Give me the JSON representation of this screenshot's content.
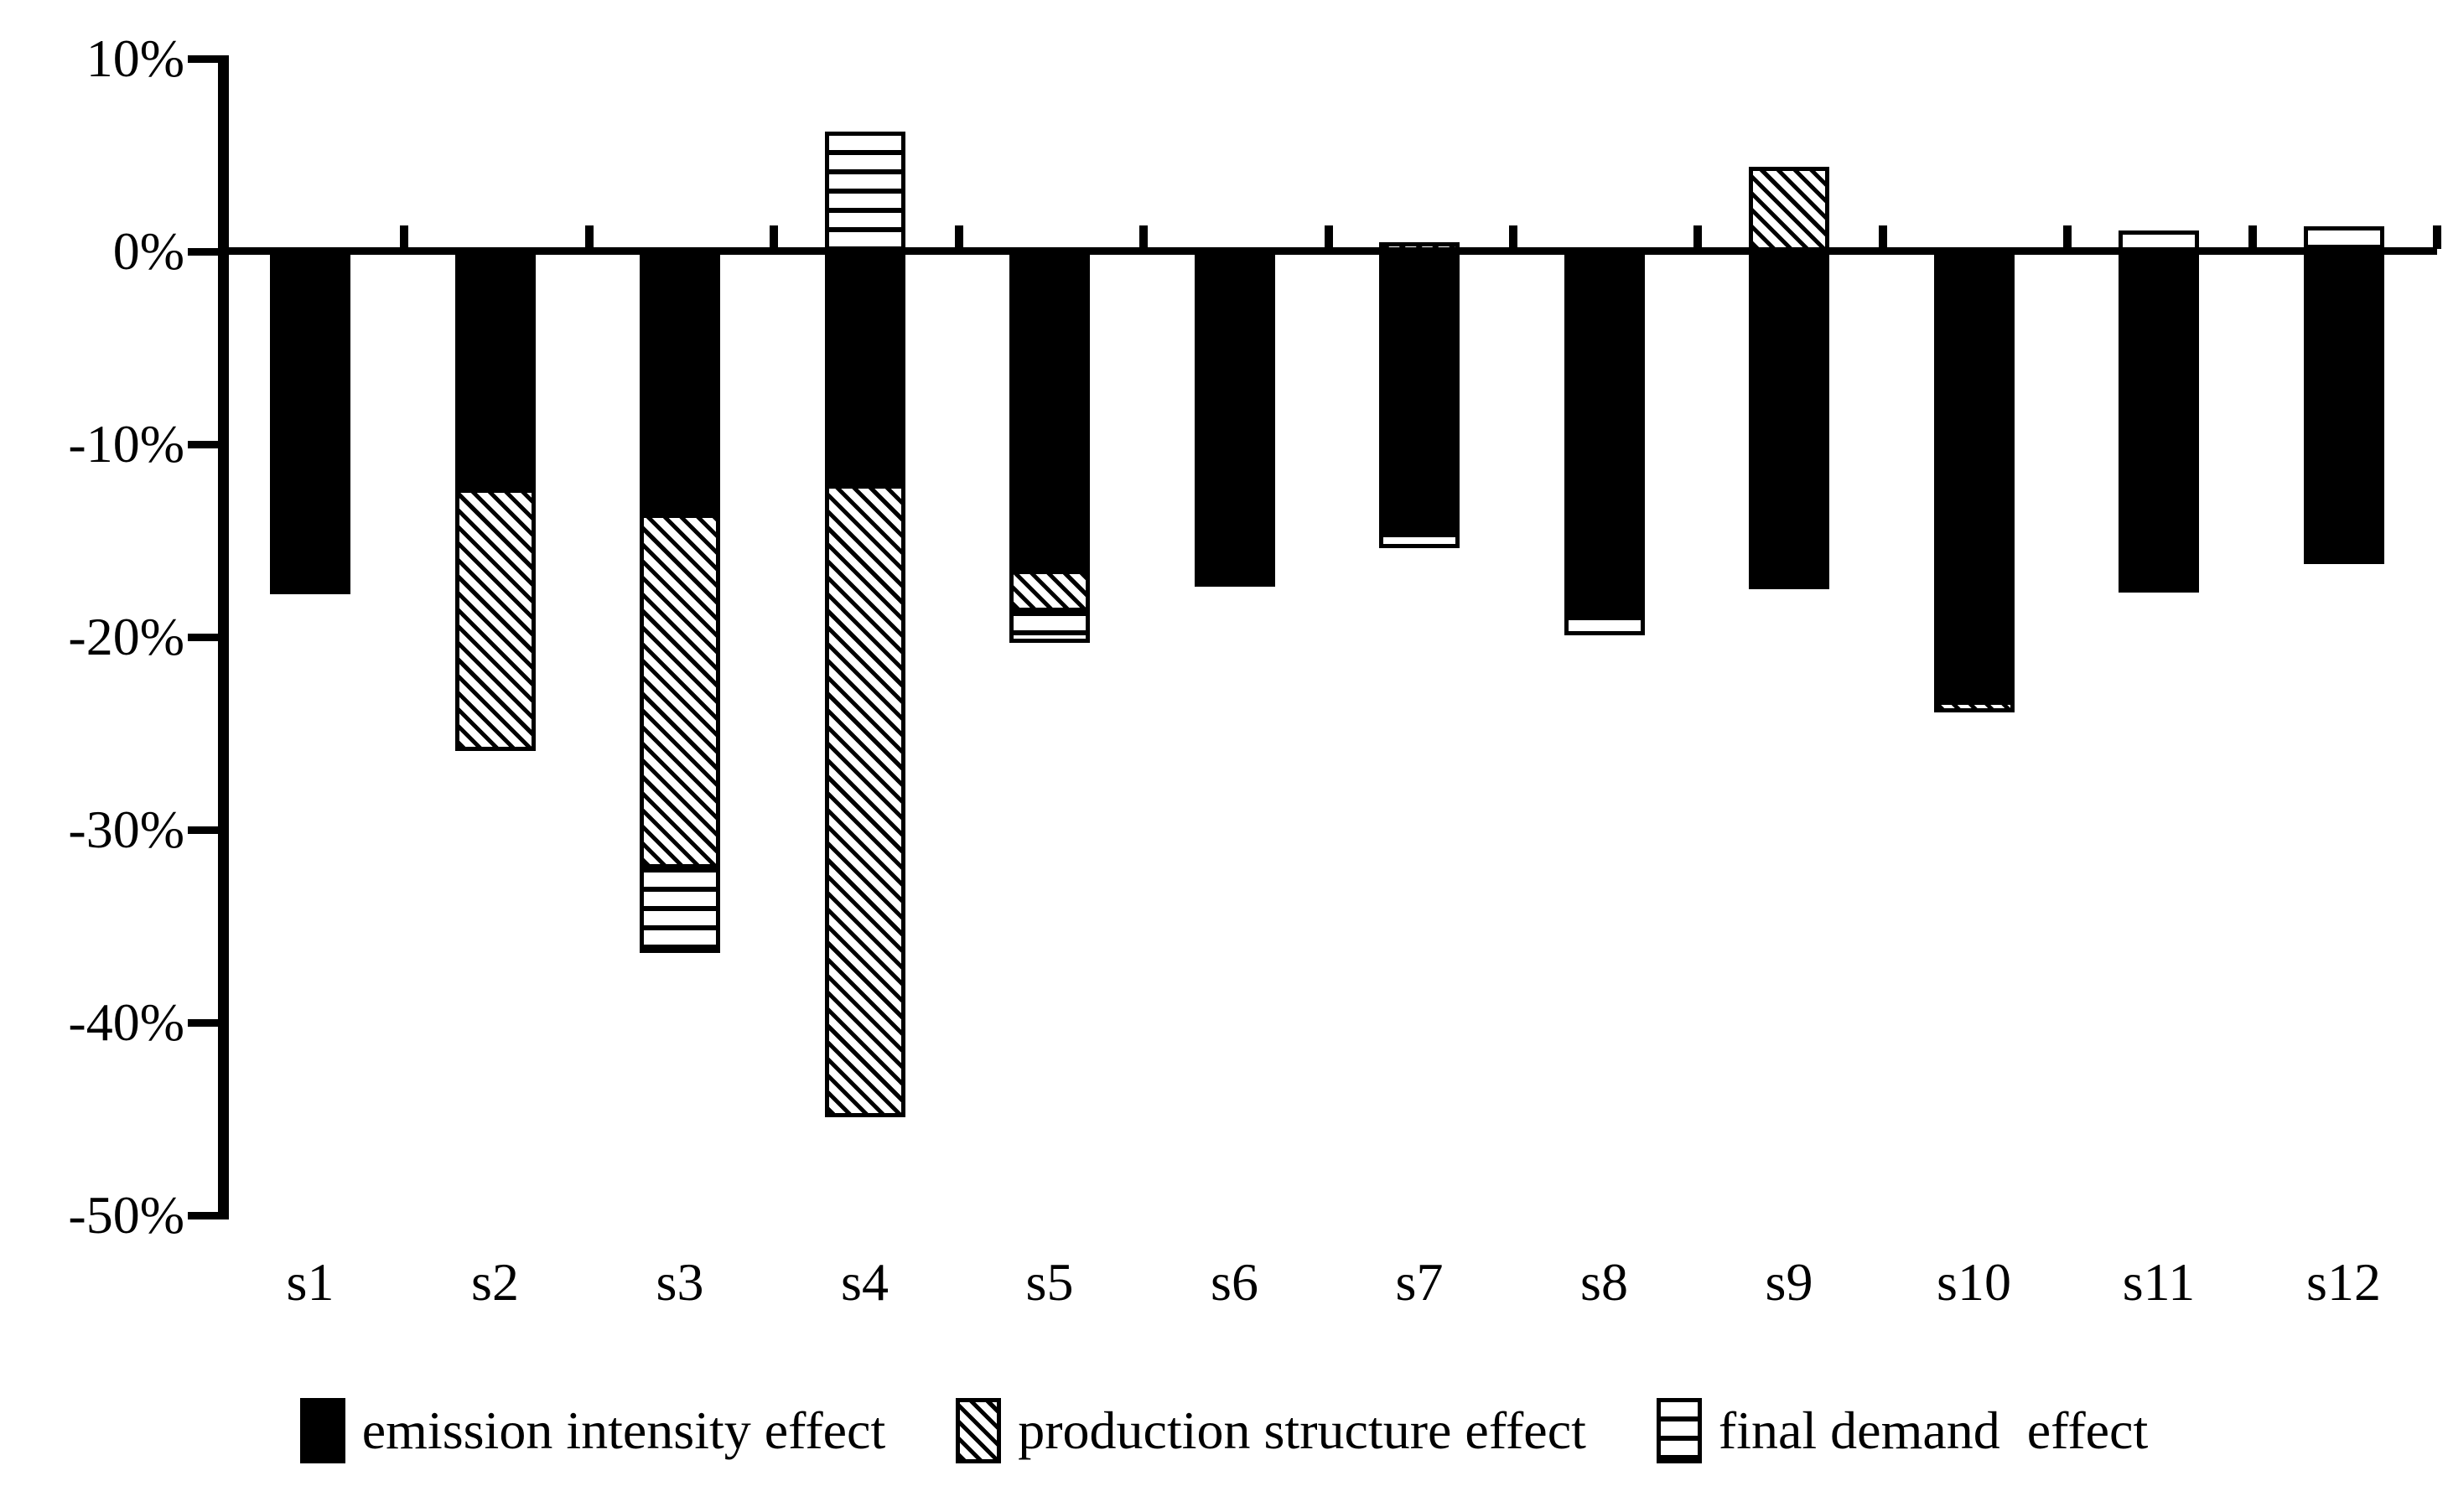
{
  "figure": {
    "background": "#ffffff",
    "ink_color": "#000000"
  },
  "chart_data": {
    "type": "bar",
    "stacked": true,
    "title": "",
    "xlabel": "",
    "ylabel": "",
    "ylim": [
      -50,
      10
    ],
    "grid": false,
    "legend_position": "bottom",
    "y_ticks": [
      {
        "label": "10%",
        "value": 10
      },
      {
        "label": "0%",
        "value": 0
      },
      {
        "label": "-10%",
        "value": -10
      },
      {
        "label": "-20%",
        "value": -20
      },
      {
        "label": "-30%",
        "value": -30
      },
      {
        "label": "-40%",
        "value": -40
      },
      {
        "label": "-50%",
        "value": -50
      }
    ],
    "categories": [
      "s1",
      "s2",
      "s3",
      "s4",
      "s5",
      "s6",
      "s7",
      "s8",
      "s9",
      "s10",
      "s11",
      "s12"
    ],
    "series": [
      {
        "name": "emission intensity effect",
        "pattern": "solid-black",
        "values": [
          -17.8,
          -12.3,
          -13.6,
          -12.1,
          -16.5,
          -17.4,
          -14.6,
          -18.9,
          -17.5,
          -23.3,
          -17.7,
          -15.8
        ]
      },
      {
        "name": "production structure effect",
        "pattern": "diagonal-hatch",
        "values": [
          0,
          -13.6,
          -18.4,
          -32.8,
          -2.2,
          0,
          0.5,
          0,
          4.4,
          -0.6,
          0,
          -0.4
        ]
      },
      {
        "name": "final demand effect",
        "pattern": "horizontal-lines",
        "values": [
          0,
          0,
          -4.4,
          6.2,
          -1.6,
          0,
          -0.8,
          -1.0,
          0,
          0,
          1.1,
          1.3
        ]
      }
    ]
  },
  "legend": {
    "items": [
      {
        "label": "emission intensity effect"
      },
      {
        "label": "production structure effect"
      },
      {
        "label": "final demand  effect"
      }
    ]
  }
}
